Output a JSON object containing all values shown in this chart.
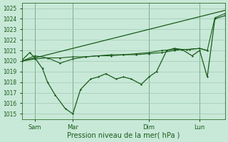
{
  "xlabel": "Pression niveau de la mer( hPa )",
  "bg_color": "#c8e8d8",
  "grid_color": "#a0c8b0",
  "line_color": "#1a5c1a",
  "spine_color": "#2d6e2d",
  "ylim": [
    1014.5,
    1025.5
  ],
  "yticks": [
    1015,
    1016,
    1017,
    1018,
    1019,
    1020,
    1021,
    1022,
    1023,
    1024,
    1025
  ],
  "xlim": [
    0,
    8
  ],
  "xtick_positions": [
    0.5,
    2.0,
    5.0,
    7.0
  ],
  "xtick_labels": [
    "Sam",
    "Mar",
    "Dim",
    "Lun"
  ],
  "vlines": [
    0.5,
    2.0,
    5.0,
    7.0
  ],
  "line_trend": {
    "x": [
      0,
      8
    ],
    "y": [
      1020.0,
      1024.8
    ]
  },
  "line_flat": {
    "x": [
      0,
      0.5,
      1.0,
      1.5,
      2.0,
      2.5,
      3.0,
      3.5,
      4.0,
      4.5,
      5.0,
      5.5,
      6.0,
      6.3,
      6.6,
      7.0,
      7.3
    ],
    "y": [
      1020.0,
      1020.2,
      1020.3,
      1020.3,
      1020.4,
      1020.4,
      1020.5,
      1020.5,
      1020.6,
      1020.6,
      1020.7,
      1020.8,
      1021.0,
      1021.1,
      1021.1,
      1021.2,
      1021.0
    ]
  },
  "line_dip": {
    "x": [
      0,
      0.3,
      0.5,
      0.8,
      1.0,
      1.3,
      1.7,
      2.0,
      2.3,
      2.7,
      3.0,
      3.3,
      3.7,
      4.0,
      4.3,
      4.7,
      5.0,
      5.3,
      5.7,
      6.0,
      6.3,
      6.7,
      7.0,
      7.3,
      7.6,
      8.0
    ],
    "y": [
      1020.1,
      1020.8,
      1020.3,
      1019.3,
      1018.0,
      1016.8,
      1015.5,
      1015.0,
      1017.3,
      1018.3,
      1018.5,
      1018.8,
      1018.3,
      1018.5,
      1018.3,
      1017.8,
      1018.5,
      1019.0,
      1021.0,
      1021.2,
      1021.1,
      1020.5,
      1021.0,
      1018.5,
      1024.0,
      1024.3
    ]
  },
  "line_mid": {
    "x": [
      0,
      0.5,
      1.0,
      1.5,
      2.0,
      2.5,
      3.0,
      3.5,
      4.0,
      4.5,
      5.0,
      5.5,
      6.0,
      6.5,
      7.0,
      7.3,
      7.6,
      8.0
    ],
    "y": [
      1020.0,
      1020.5,
      1020.3,
      1019.8,
      1020.2,
      1020.4,
      1020.5,
      1020.6,
      1020.6,
      1020.7,
      1020.8,
      1021.0,
      1021.1,
      1021.1,
      1021.2,
      1021.0,
      1024.1,
      1024.5
    ]
  }
}
